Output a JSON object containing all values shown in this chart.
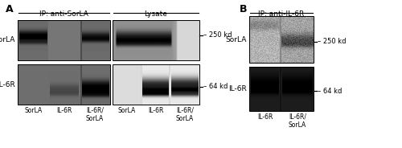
{
  "fig_width": 5.0,
  "fig_height": 1.84,
  "dpi": 100,
  "bg_color": "#ffffff",
  "panel_A_label": "A",
  "panel_B_label": "B",
  "ip_sorla_label": "IP: anti-SorLA",
  "lysate_label": "Lysate",
  "ip_il6r_label": "IP: anti-IL-6R",
  "sorla_label": "SorLA",
  "il6r_label": "IL-6R",
  "marker_250": "250 kd",
  "marker_64": "64 kd",
  "xticklabels_A": [
    "SorLA",
    "IL-6R",
    "IL-6R/\nSorLA",
    "SorLA",
    "IL-6R",
    "IL-6R/\nSorLA"
  ],
  "xticklabels_B": [
    "IL-6R",
    "IL-6R/\nSorLA"
  ]
}
